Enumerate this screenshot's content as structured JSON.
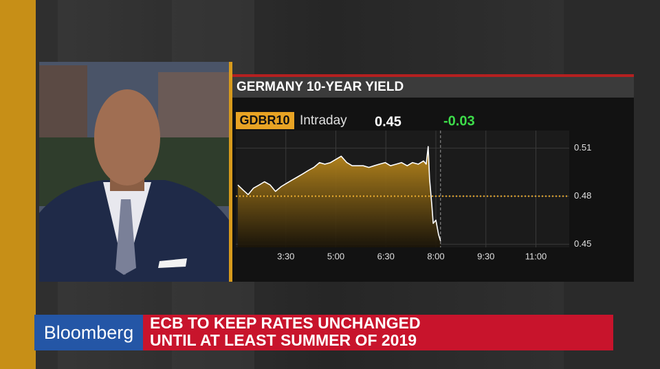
{
  "chart_data": {
    "type": "line",
    "title": "GERMANY 10-YEAR YIELD",
    "ticker": "GDBR10",
    "period": "Intraday",
    "last": 0.45,
    "change": -0.03,
    "color": "#ffffff",
    "fill_color": "#c8921e",
    "reference_value": 0.48,
    "reference_color": "#f0b030",
    "grid": true,
    "x": [
      2.06,
      2.21,
      2.37,
      2.53,
      2.7,
      2.86,
      3.03,
      3.19,
      3.36,
      3.52,
      3.68,
      3.85,
      4.01,
      4.17,
      4.34,
      4.51,
      4.67,
      4.84,
      5.0,
      5.16,
      5.33,
      5.49,
      5.66,
      5.82,
      5.99,
      6.15,
      6.31,
      6.48,
      6.64,
      6.81,
      6.97,
      7.14,
      7.3,
      7.47,
      7.63,
      7.71,
      7.77,
      7.81,
      7.88,
      7.92,
      8.0,
      8.08,
      8.14
    ],
    "values": [
      0.487,
      0.484,
      0.481,
      0.485,
      0.487,
      0.489,
      0.487,
      0.483,
      0.486,
      0.488,
      0.49,
      0.492,
      0.494,
      0.496,
      0.498,
      0.501,
      0.5,
      0.501,
      0.503,
      0.505,
      0.501,
      0.499,
      0.499,
      0.499,
      0.498,
      0.499,
      0.5,
      0.501,
      0.499,
      0.5,
      0.501,
      0.499,
      0.501,
      0.5,
      0.502,
      0.5,
      0.511,
      0.491,
      0.474,
      0.463,
      0.465,
      0.456,
      0.452
    ],
    "xlim": [
      2,
      12
    ],
    "xticks": [
      {
        "value": 3.5,
        "label": "3:30"
      },
      {
        "value": 5,
        "label": "5:00"
      },
      {
        "value": 6.5,
        "label": "6:30"
      },
      {
        "value": 8,
        "label": "8:00"
      },
      {
        "value": 9.5,
        "label": "9:30"
      },
      {
        "value": 11,
        "label": "11:00"
      }
    ],
    "ylim": [
      0.448,
      0.521
    ],
    "yticks": [
      0.45,
      0.48,
      0.51
    ]
  },
  "lower_third": {
    "brand": "Bloomberg",
    "headline": [
      "ECB TO KEEP RATES UNCHANGED",
      "UNTIL AT LEAST SUMMER OF 2019"
    ]
  }
}
